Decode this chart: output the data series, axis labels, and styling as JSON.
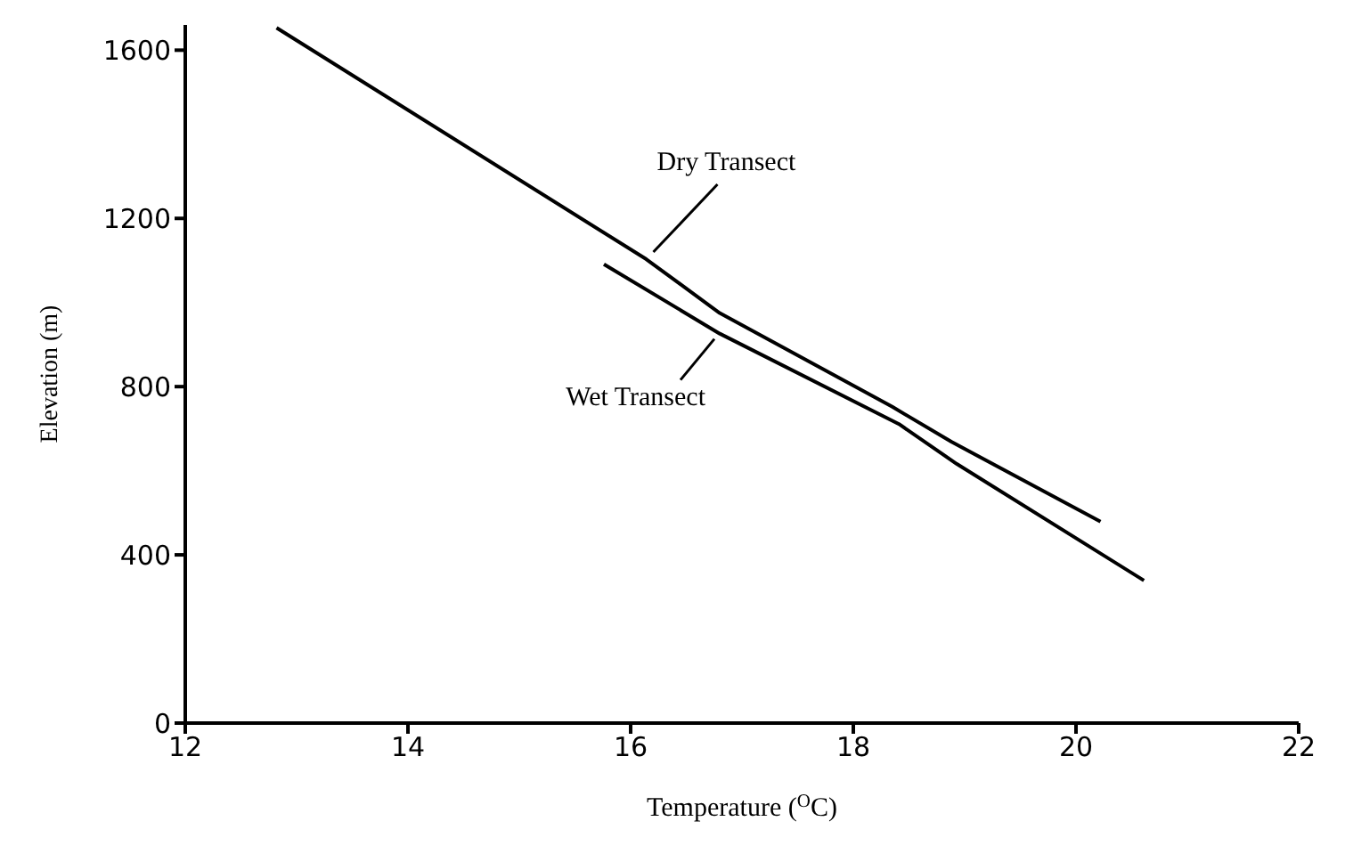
{
  "chart_data": {
    "type": "line",
    "xlabel": "Temperature ($^{O}$C)",
    "ylabel": "Elevation (m)",
    "xlim": [
      12,
      22
    ],
    "xticks": [
      12,
      14,
      16,
      18,
      20,
      22
    ],
    "ylim": [
      0,
      1660
    ],
    "yticks": [
      0,
      400,
      800,
      1200,
      1600
    ],
    "grid": false,
    "series": [
      {
        "name": "Dry Transect",
        "color": "#000000",
        "x": [
          12.82,
          16.14,
          16.8,
          18.35,
          18.88,
          20.22
        ],
        "values": [
          1653,
          1103,
          975,
          752,
          669,
          479
        ]
      },
      {
        "name": "Wet Transect",
        "color": "#000000",
        "x": [
          15.76,
          16.8,
          18.41,
          18.93,
          20.61
        ],
        "values": [
          1091,
          926,
          711,
          616,
          339
        ]
      }
    ]
  }
}
